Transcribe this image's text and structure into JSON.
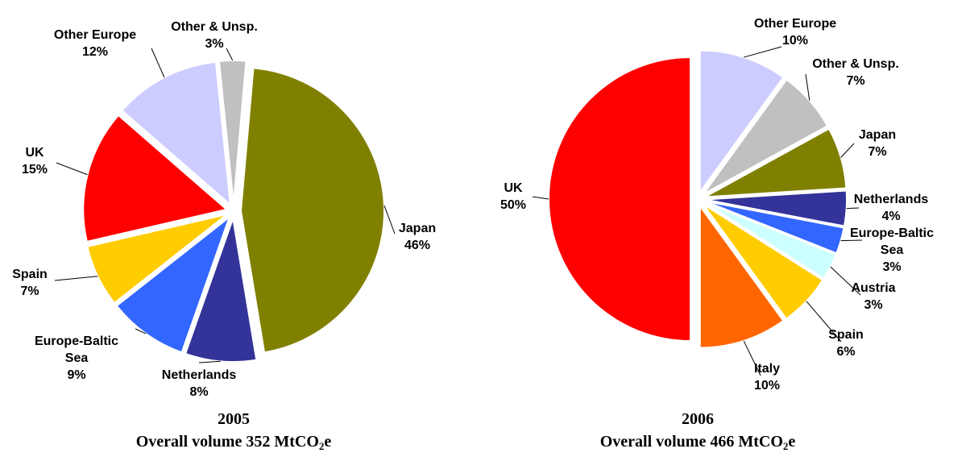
{
  "chart_data": [
    {
      "type": "pie",
      "year": "2005",
      "caption_prefix": "Overall volume 352 MtCO",
      "caption_sub": "2",
      "caption_suffix": "e",
      "slices": [
        {
          "name": "Japan",
          "pct_label": "46%",
          "value": 46,
          "color": "#808000"
        },
        {
          "name": "Netherlands",
          "pct_label": "8%",
          "value": 8,
          "color": "#333399"
        },
        {
          "name": "Europe-Baltic Sea",
          "name_lines": [
            "Europe-Baltic",
            "Sea"
          ],
          "pct_label": "9%",
          "value": 9,
          "color": "#3366FF"
        },
        {
          "name": "Spain",
          "pct_label": "7%",
          "value": 7,
          "color": "#FFCC00"
        },
        {
          "name": "UK",
          "pct_label": "15%",
          "value": 15,
          "color": "#FF0000"
        },
        {
          "name": "Other Europe",
          "pct_label": "12%",
          "value": 12,
          "color": "#CCCCFF"
        },
        {
          "name": "Other & Unsp.",
          "pct_label": "3%",
          "value": 3,
          "color": "#C0C0C0"
        }
      ]
    },
    {
      "type": "pie",
      "year": "2006",
      "caption_prefix": "Overall volume 466 MtCO",
      "caption_sub": "2",
      "caption_suffix": "e",
      "slices": [
        {
          "name": "Other Europe",
          "pct_label": "10%",
          "value": 10,
          "color": "#CCCCFF"
        },
        {
          "name": "Other & Unsp.",
          "pct_label": "7%",
          "value": 7,
          "color": "#C0C0C0"
        },
        {
          "name": "Japan",
          "pct_label": "7%",
          "value": 7,
          "color": "#808000"
        },
        {
          "name": "Netherlands",
          "pct_label": "4%",
          "value": 4,
          "color": "#333399"
        },
        {
          "name": "Europe-Baltic Sea",
          "name_lines": [
            "Europe-Baltic",
            "Sea"
          ],
          "pct_label": "3%",
          "value": 3,
          "color": "#3366FF"
        },
        {
          "name": "Austria",
          "pct_label": "3%",
          "value": 3,
          "color": "#CCFFFF"
        },
        {
          "name": "Spain",
          "pct_label": "6%",
          "value": 6,
          "color": "#FFCC00"
        },
        {
          "name": "Italy",
          "pct_label": "10%",
          "value": 10,
          "color": "#FF6600"
        },
        {
          "name": "UK",
          "pct_label": "50%",
          "value": 50,
          "color": "#FF0000"
        }
      ]
    }
  ]
}
